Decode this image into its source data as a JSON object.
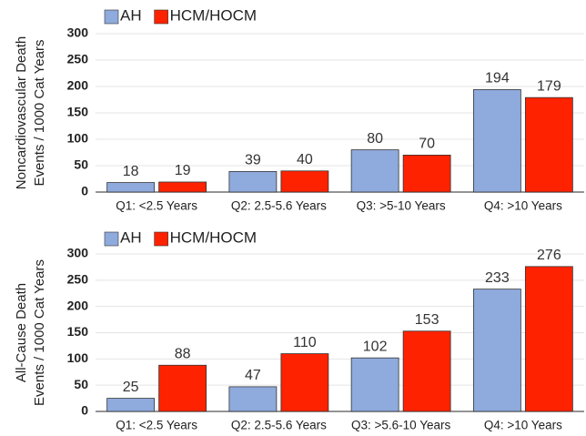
{
  "chart_data": [
    {
      "type": "bar",
      "ylabel": [
        "Noncardiovascular Death",
        "Events / 1000 Cat Years"
      ],
      "categories": [
        "Q1: <2.5 Years",
        "Q2: 2.5-5.6 Years",
        "Q3: >5-10 Years",
        "Q4: >10 Years"
      ],
      "series": [
        {
          "name": "AH",
          "color": "#8faadc",
          "values": [
            18,
            39,
            80,
            194
          ]
        },
        {
          "name": "HCM/HOCM",
          "color": "#ff2200",
          "values": [
            19,
            40,
            70,
            179
          ]
        }
      ],
      "ylim": [
        0,
        300
      ],
      "yticks": [
        0,
        50,
        100,
        150,
        200,
        250,
        300
      ],
      "grid": true
    },
    {
      "type": "bar",
      "ylabel": [
        "All-Cause Death",
        "Events / 1000 Cat Years"
      ],
      "categories": [
        "Q1: <2.5 Years",
        "Q2: 2.5-5.6 Years",
        "Q3: >5.6-10 Years",
        "Q4: >10 Years"
      ],
      "series": [
        {
          "name": "AH",
          "color": "#8faadc",
          "values": [
            25,
            47,
            102,
            233
          ]
        },
        {
          "name": "HCM/HOCM",
          "color": "#ff2200",
          "values": [
            88,
            110,
            153,
            276
          ]
        }
      ],
      "ylim": [
        0,
        300
      ],
      "yticks": [
        0,
        50,
        100,
        150,
        200,
        250,
        300
      ],
      "grid": true
    }
  ]
}
